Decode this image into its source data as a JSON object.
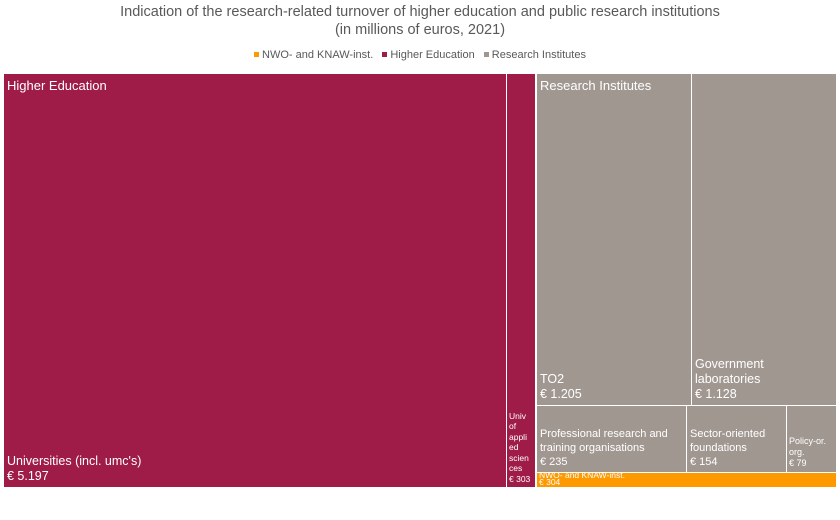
{
  "chart_data": {
    "type": "treemap",
    "title": "Indication of the research-related turnover of higher education and public research institutions",
    "subtitle": "(in millions of euros, 2021)",
    "legend": [
      {
        "name": "NWO- and KNAW-inst.",
        "color": "#ff9900"
      },
      {
        "name": "Higher Education",
        "color": "#9e1c47"
      },
      {
        "name": "Research Institutes",
        "color": "#a19791"
      }
    ],
    "legend_position": "top",
    "groups": [
      {
        "name": "Higher Education",
        "color": "#9e1c47",
        "items": [
          {
            "name": "Universities (incl. umc's)",
            "value": 5197,
            "value_label": "€ 5.197"
          },
          {
            "name": "Univ of appli ed scien ces",
            "value": 303,
            "value_label": "€ 303"
          }
        ]
      },
      {
        "name": "Research Institutes",
        "color": "#a19791",
        "items": [
          {
            "name": "TO2",
            "value": 1205,
            "value_label": "€ 1.205"
          },
          {
            "name": "Government laboratories",
            "value": 1128,
            "value_label": "€ 1.128"
          },
          {
            "name": "Professional research and training organisations",
            "value": 235,
            "value_label": "€ 235"
          },
          {
            "name": "Sector-oriented foundations",
            "value": 154,
            "value_label": "€ 154"
          },
          {
            "name": "Policy-or. org.",
            "value": 79,
            "value_label": "€ 79"
          }
        ]
      },
      {
        "name": "NWO- and KNAW-inst.",
        "color": "#ff9900",
        "items": [
          {
            "name": "NWO- and KNAW-inst.",
            "value": 304,
            "value_label": "€ 304"
          }
        ]
      }
    ]
  }
}
